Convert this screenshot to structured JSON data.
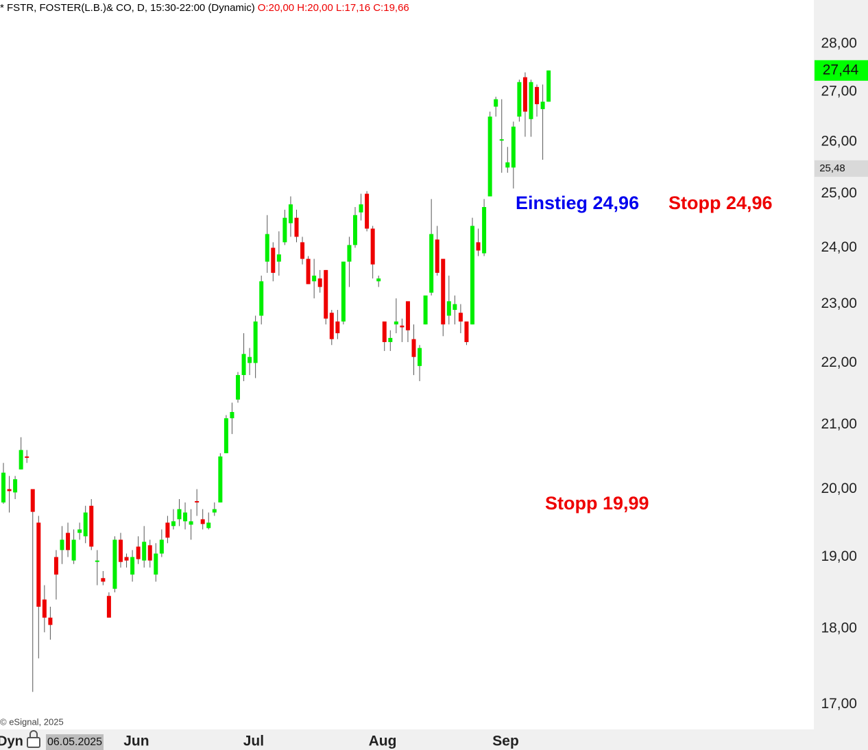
{
  "chart_data": {
    "type": "candlestick",
    "title": "* FSTR, FOSTER(L.B.)& CO, D, 15:30-22:00 (Dynamic)",
    "ohlc_label": "O:20,00 H:20,00 L:17,16 C:19,66",
    "cursor_date": "06.05.2025",
    "mode_label": "Dyn",
    "credit": "© eSignal, 2025",
    "log_scale": true,
    "up_color": "#00ee00",
    "down_color": "#ee0000",
    "ylim": [
      16.68,
      28.94
    ],
    "yticks": [
      {
        "value": 17,
        "label": "17,00"
      },
      {
        "value": 18,
        "label": "18,00"
      },
      {
        "value": 19,
        "label": "19,00"
      },
      {
        "value": 20,
        "label": "20,00"
      },
      {
        "value": 21,
        "label": "21,00"
      },
      {
        "value": 22,
        "label": "22,00"
      },
      {
        "value": 23,
        "label": "23,00"
      },
      {
        "value": 24,
        "label": "24,00"
      },
      {
        "value": 25,
        "label": "25,00"
      },
      {
        "value": 26,
        "label": "26,00"
      },
      {
        "value": 27,
        "label": "27,00"
      },
      {
        "value": 28,
        "label": "28,00"
      }
    ],
    "categories": [
      null,
      null,
      null,
      null,
      null,
      null,
      null,
      null,
      null,
      null,
      null,
      null,
      null,
      null,
      null,
      null,
      null,
      null,
      "Jun",
      null,
      null,
      null,
      null,
      null,
      null,
      null,
      null,
      null,
      null,
      null,
      null,
      null,
      null,
      null,
      null,
      null,
      null,
      null,
      "Jul",
      null,
      null,
      null,
      null,
      null,
      null,
      null,
      null,
      null,
      null,
      null,
      null,
      null,
      null,
      null,
      null,
      null,
      null,
      null,
      null,
      null,
      "Aug",
      null,
      null,
      null,
      null,
      null,
      null,
      null,
      null,
      null,
      null,
      null,
      null,
      null,
      null,
      null,
      null,
      null,
      null,
      null,
      null,
      "Sep",
      null,
      null,
      null,
      null,
      null,
      null,
      null,
      null,
      null,
      null,
      null,
      null
    ],
    "open": [
      19.8,
      20.0,
      19.95,
      20.3,
      20.5,
      20.0,
      19.5,
      18.4,
      18.15,
      19.0,
      19.1,
      19.35,
      18.95,
      19.35,
      19.3,
      19.75,
      18.93,
      18.7,
      18.45,
      18.55,
      19.25,
      19.0,
      18.75,
      19.15,
      18.95,
      19.17,
      18.75,
      19.05,
      19.5,
      19.45,
      19.55,
      19.52,
      19.47,
      19.82,
      19.55,
      19.42,
      19.65,
      19.8,
      20.55,
      21.1,
      21.4,
      21.8,
      22.0,
      22.0,
      22.8,
      23.75,
      24.0,
      23.75,
      24.1,
      24.45,
      24.55,
      24.1,
      23.8,
      23.4,
      23.45,
      23.6,
      22.85,
      22.7,
      22.7,
      23.75,
      24.05,
      24.65,
      25.0,
      24.35,
      23.4,
      22.7,
      22.35,
      22.65,
      22.63,
      23.05,
      22.4,
      21.95,
      22.65,
      23.2,
      24.15,
      23.8,
      22.8,
      22.9,
      22.85,
      22.7,
      22.65,
      24.1,
      23.9,
      24.95,
      26.7,
      26.03,
      25.5,
      25.5,
      26.5,
      27.3,
      26.45,
      27.1,
      26.65,
      26.8
    ],
    "high": [
      20.4,
      20.2,
      20.2,
      20.8,
      20.6,
      20.0,
      19.6,
      18.6,
      18.3,
      19.1,
      19.45,
      19.5,
      19.4,
      19.5,
      19.75,
      19.85,
      19.1,
      18.8,
      18.5,
      19.3,
      19.35,
      19.05,
      19.1,
      19.3,
      19.45,
      19.25,
      19.2,
      19.4,
      19.6,
      19.7,
      19.85,
      19.8,
      19.7,
      20.0,
      19.7,
      19.65,
      19.8,
      20.55,
      21.15,
      21.35,
      21.85,
      22.5,
      22.25,
      22.8,
      23.5,
      24.6,
      24.1,
      24.3,
      24.7,
      24.95,
      24.7,
      24.2,
      23.85,
      23.8,
      23.6,
      23.6,
      22.9,
      22.9,
      23.75,
      24.2,
      24.75,
      25.0,
      25.05,
      24.4,
      23.5,
      22.7,
      22.55,
      23.1,
      22.75,
      23.05,
      22.65,
      22.3,
      23.15,
      24.9,
      24.4,
      23.8,
      23.5,
      23.15,
      23.0,
      22.7,
      24.55,
      24.35,
      24.9,
      26.6,
      26.9,
      26.85,
      25.9,
      26.4,
      27.25,
      27.4,
      27.25,
      27.15,
      27.15,
      27.44
    ],
    "low": [
      19.78,
      19.65,
      19.85,
      20.3,
      20.4,
      17.16,
      17.6,
      17.95,
      17.85,
      18.4,
      18.9,
      19.0,
      18.9,
      19.25,
      19.2,
      19.1,
      18.6,
      18.6,
      18.15,
      18.5,
      18.85,
      18.85,
      18.65,
      18.9,
      18.85,
      18.85,
      18.65,
      19.0,
      19.2,
      19.4,
      19.45,
      19.4,
      19.25,
      19.6,
      19.4,
      19.4,
      19.6,
      19.8,
      20.55,
      20.85,
      21.35,
      21.7,
      21.8,
      21.75,
      22.65,
      23.55,
      23.4,
      23.5,
      24.05,
      24.2,
      24.1,
      23.7,
      23.35,
      23.1,
      23.2,
      22.65,
      22.3,
      22.4,
      22.65,
      23.3,
      24.0,
      24.5,
      24.3,
      23.45,
      23.3,
      22.2,
      22.2,
      22.5,
      22.35,
      22.35,
      21.8,
      21.7,
      22.65,
      23.15,
      23.5,
      22.45,
      22.65,
      22.65,
      22.5,
      22.3,
      22.65,
      23.85,
      23.85,
      24.95,
      26.5,
      25.4,
      25.4,
      25.1,
      26.4,
      26.1,
      26.1,
      26.5,
      25.65,
      26.8
    ],
    "close": [
      20.25,
      19.97,
      20.15,
      20.6,
      20.48,
      19.66,
      18.3,
      18.15,
      18.05,
      18.75,
      19.25,
      19.1,
      19.25,
      19.4,
      19.65,
      19.15,
      18.95,
      18.65,
      18.15,
      19.25,
      18.93,
      18.95,
      19.0,
      18.97,
      19.22,
      18.95,
      19.05,
      19.25,
      19.28,
      19.52,
      19.7,
      19.65,
      19.52,
      19.8,
      19.48,
      19.5,
      19.7,
      20.5,
      21.1,
      21.2,
      21.8,
      22.15,
      22.1,
      22.7,
      23.4,
      24.25,
      23.55,
      23.88,
      24.55,
      24.8,
      24.2,
      23.8,
      23.35,
      23.5,
      23.3,
      22.75,
      22.4,
      22.5,
      23.75,
      24.05,
      24.6,
      24.8,
      24.35,
      23.7,
      23.45,
      22.35,
      22.42,
      22.7,
      22.6,
      22.55,
      22.1,
      22.25,
      23.15,
      24.25,
      23.55,
      22.65,
      23.05,
      23.0,
      22.7,
      22.35,
      24.4,
      23.95,
      24.75,
      26.5,
      26.85,
      26.05,
      25.6,
      26.3,
      27.2,
      26.6,
      27.2,
      26.75,
      26.8,
      27.44
    ],
    "price_labels": [
      {
        "value": 27.44,
        "label": "27,44",
        "color": "#00ff00"
      },
      {
        "value": 25.48,
        "label": "25,48",
        "color": "#d9d9d9"
      }
    ],
    "annotations": [
      {
        "text": "Einstieg 24,96",
        "color": "#0000ee"
      },
      {
        "text": "Stopp 24,96",
        "color": "#ee0000"
      },
      {
        "text": "Stopp 19,99",
        "color": "#ee0000"
      }
    ]
  }
}
